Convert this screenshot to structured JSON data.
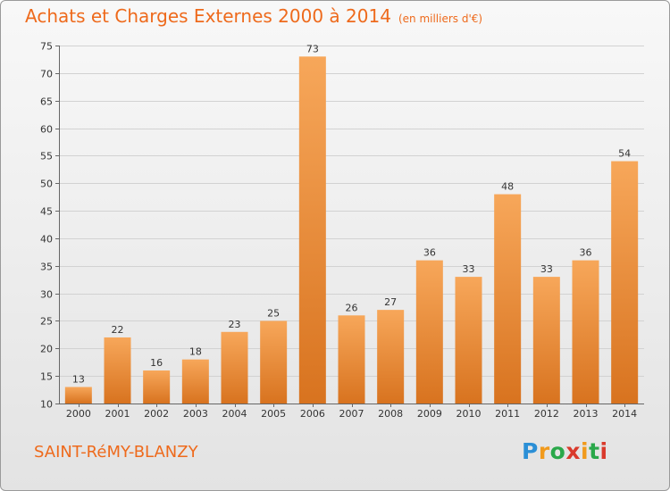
{
  "title": "Achats et Charges Externes 2000 à 2014",
  "subtitle": "(en milliers d'€)",
  "place_name": "SAINT-RéMY-BLANZY",
  "logo": {
    "letters": [
      "P",
      "r",
      "o",
      "x",
      "i",
      "t",
      "i"
    ],
    "colors": [
      "#2b8fd6",
      "#f19a1c",
      "#2aa84a",
      "#d93a2c",
      "#f19a1c",
      "#2aa84a",
      "#d93a2c"
    ]
  },
  "colors": {
    "bar_top": "#f7a75a",
    "bar_bottom": "#d8731f",
    "title": "#ee6a1c"
  },
  "chart_data": {
    "type": "bar",
    "title": "Achats et Charges Externes 2000 à 2014",
    "subtitle": "(en milliers d'€)",
    "categories": [
      "2000",
      "2001",
      "2002",
      "2003",
      "2004",
      "2005",
      "2006",
      "2007",
      "2008",
      "2009",
      "2010",
      "2011",
      "2012",
      "2013",
      "2014"
    ],
    "values": [
      13,
      22,
      16,
      18,
      23,
      25,
      73,
      26,
      27,
      36,
      33,
      48,
      33,
      36,
      54
    ],
    "ylim": [
      10,
      75
    ],
    "yticks": [
      10,
      15,
      20,
      25,
      30,
      35,
      40,
      45,
      50,
      55,
      60,
      65,
      70,
      75
    ],
    "grid": true,
    "legend": "none"
  }
}
